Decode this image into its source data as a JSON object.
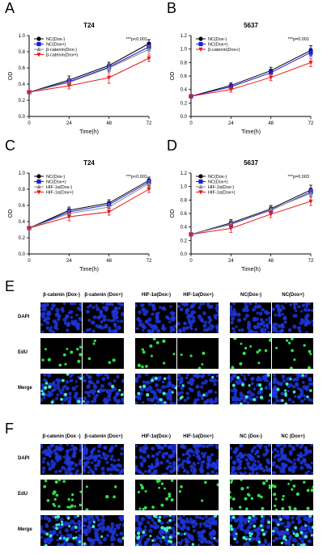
{
  "panels": {
    "A": "A",
    "B": "B",
    "C": "C",
    "D": "D",
    "E": "E",
    "F": "F"
  },
  "chart_data": [
    {
      "id": "A",
      "type": "line",
      "title": "T24",
      "xlabel": "Time(h)",
      "ylabel": "OD",
      "x": [
        0,
        24,
        48,
        72
      ],
      "xlim": [
        0,
        72
      ],
      "ylim": [
        0.0,
        1.0
      ],
      "xticks": [
        "0",
        "24",
        "48",
        "72"
      ],
      "yticks": [
        "0.0",
        "0.2",
        "0.4",
        "0.6",
        "0.8",
        "1.0"
      ],
      "annotation": "***p<0.001",
      "series": [
        {
          "name": "NC(Dox-)",
          "color": "#000000",
          "marker": "circle",
          "values": [
            0.3,
            0.45,
            0.63,
            0.9
          ],
          "err": [
            0.02,
            0.05,
            0.04,
            0.05
          ]
        },
        {
          "name": "NC(Dox+)",
          "color": "#1f1fd6",
          "marker": "square",
          "values": [
            0.3,
            0.43,
            0.61,
            0.86
          ],
          "err": [
            0.02,
            0.04,
            0.04,
            0.05
          ]
        },
        {
          "name": "β-catenin(Dox-)",
          "color": "#8a8a8a",
          "marker": "triangle",
          "values": [
            0.3,
            0.42,
            0.6,
            0.83
          ],
          "err": [
            0.02,
            0.04,
            0.04,
            0.05
          ]
        },
        {
          "name": "β-catenin(Dox+)",
          "color": "#e8191c",
          "marker": "triangle-down",
          "values": [
            0.3,
            0.38,
            0.48,
            0.72
          ],
          "err": [
            0.02,
            0.04,
            0.07,
            0.04
          ]
        }
      ]
    },
    {
      "id": "B",
      "type": "line",
      "title": "5637",
      "xlabel": "Time(h)",
      "ylabel": "OD",
      "x": [
        0,
        24,
        48,
        72
      ],
      "xlim": [
        0,
        72
      ],
      "ylim": [
        0.0,
        1.2
      ],
      "xticks": [
        "0",
        "24",
        "48",
        "72"
      ],
      "yticks": [
        "0.0",
        "0.2",
        "0.4",
        "0.6",
        "0.8",
        "1.0",
        "1.2"
      ],
      "annotation": "***p=0.001",
      "series": [
        {
          "name": "NC(Dox-)",
          "color": "#000000",
          "marker": "circle",
          "values": [
            0.3,
            0.46,
            0.68,
            0.98
          ],
          "err": [
            0.02,
            0.04,
            0.05,
            0.07
          ]
        },
        {
          "name": "NC(Dox+)",
          "color": "#1f1fd6",
          "marker": "square",
          "values": [
            0.3,
            0.44,
            0.65,
            0.95
          ],
          "err": [
            0.02,
            0.04,
            0.05,
            0.06
          ]
        },
        {
          "name": "β-catenin(Dox+)",
          "color": "#e8191c",
          "marker": "triangle-down",
          "values": [
            0.3,
            0.4,
            0.58,
            0.8
          ],
          "err": [
            0.02,
            0.04,
            0.05,
            0.06
          ]
        }
      ]
    },
    {
      "id": "C",
      "type": "line",
      "title": "T24",
      "xlabel": "Time(h)",
      "ylabel": "OD",
      "x": [
        0,
        24,
        48,
        72
      ],
      "xlim": [
        0,
        72
      ],
      "ylim": [
        0.0,
        1.0
      ],
      "xticks": [
        "0",
        "24",
        "48",
        "72"
      ],
      "yticks": [
        "0.0",
        "0.2",
        "0.4",
        "0.6",
        "0.8",
        "1.0"
      ],
      "annotation": "***p<0.001",
      "series": [
        {
          "name": "NC(Dox-)",
          "color": "#000000",
          "marker": "circle",
          "values": [
            0.32,
            0.54,
            0.63,
            0.91
          ],
          "err": [
            0.02,
            0.04,
            0.04,
            0.04
          ]
        },
        {
          "name": "NC(Dox+)",
          "color": "#1f1fd6",
          "marker": "square",
          "values": [
            0.32,
            0.52,
            0.61,
            0.89
          ],
          "err": [
            0.02,
            0.04,
            0.04,
            0.04
          ]
        },
        {
          "name": "HIF-1α(Dox-)",
          "color": "#8a8a8a",
          "marker": "triangle",
          "values": [
            0.32,
            0.5,
            0.58,
            0.87
          ],
          "err": [
            0.02,
            0.04,
            0.04,
            0.04
          ]
        },
        {
          "name": "HIF-1α(Dox+)",
          "color": "#e8191c",
          "marker": "triangle-down",
          "values": [
            0.32,
            0.46,
            0.52,
            0.8
          ],
          "err": [
            0.02,
            0.05,
            0.04,
            0.04
          ]
        }
      ]
    },
    {
      "id": "D",
      "type": "line",
      "title": "5637",
      "xlabel": "Time(h)",
      "ylabel": "OD",
      "x": [
        0,
        24,
        48,
        72
      ],
      "xlim": [
        0,
        72
      ],
      "ylim": [
        0.0,
        1.2
      ],
      "xticks": [
        "0",
        "24",
        "48",
        "72"
      ],
      "yticks": [
        "0.0",
        "0.2",
        "0.4",
        "0.6",
        "0.8",
        "1.0",
        "1.2"
      ],
      "annotation": "***p=0.003",
      "series": [
        {
          "name": "NC(Dox-)",
          "color": "#000000",
          "marker": "circle",
          "values": [
            0.29,
            0.46,
            0.67,
            0.95
          ],
          "err": [
            0.02,
            0.05,
            0.05,
            0.07
          ]
        },
        {
          "name": "NC(Dox+)",
          "color": "#1f1fd6",
          "marker": "square",
          "values": [
            0.29,
            0.44,
            0.65,
            0.92
          ],
          "err": [
            0.02,
            0.05,
            0.05,
            0.06
          ]
        },
        {
          "name": "HIF-1α(Dox-)",
          "color": "#8a8a8a",
          "marker": "triangle",
          "values": [
            0.29,
            0.45,
            0.66,
            0.9
          ],
          "err": [
            0.02,
            0.05,
            0.05,
            0.06
          ]
        },
        {
          "name": "HIF-1α(Dox+)",
          "color": "#e8191c",
          "marker": "triangle-down",
          "values": [
            0.29,
            0.38,
            0.59,
            0.78
          ],
          "err": [
            0.02,
            0.06,
            0.05,
            0.06
          ]
        }
      ]
    }
  ],
  "micrographs": {
    "E": {
      "columns": [
        "β-catenin (Dox-)",
        "β-catenin (Dox+)",
        "HIF-1α(Dox-)",
        "HIF-1α(Dox+)",
        "NC(Dox-)",
        "NC(Dox+)"
      ],
      "rows": [
        "DAPI",
        "EdU",
        "Merge"
      ]
    },
    "F": {
      "columns": [
        "β-catenin (Dox -)",
        "β-catenin (Dox+)",
        "HIF-1α(Dox-)",
        "HIF-1α(Dox+)",
        "NC (Dox-)",
        "NC (Dox+)"
      ],
      "rows": [
        "DAPI",
        "EdU",
        "Merge"
      ]
    },
    "colors": {
      "dapi": "#1f35d8",
      "edu": "#2fe04a",
      "merge_edu": "#3ff0c0",
      "background": "#000000"
    }
  }
}
